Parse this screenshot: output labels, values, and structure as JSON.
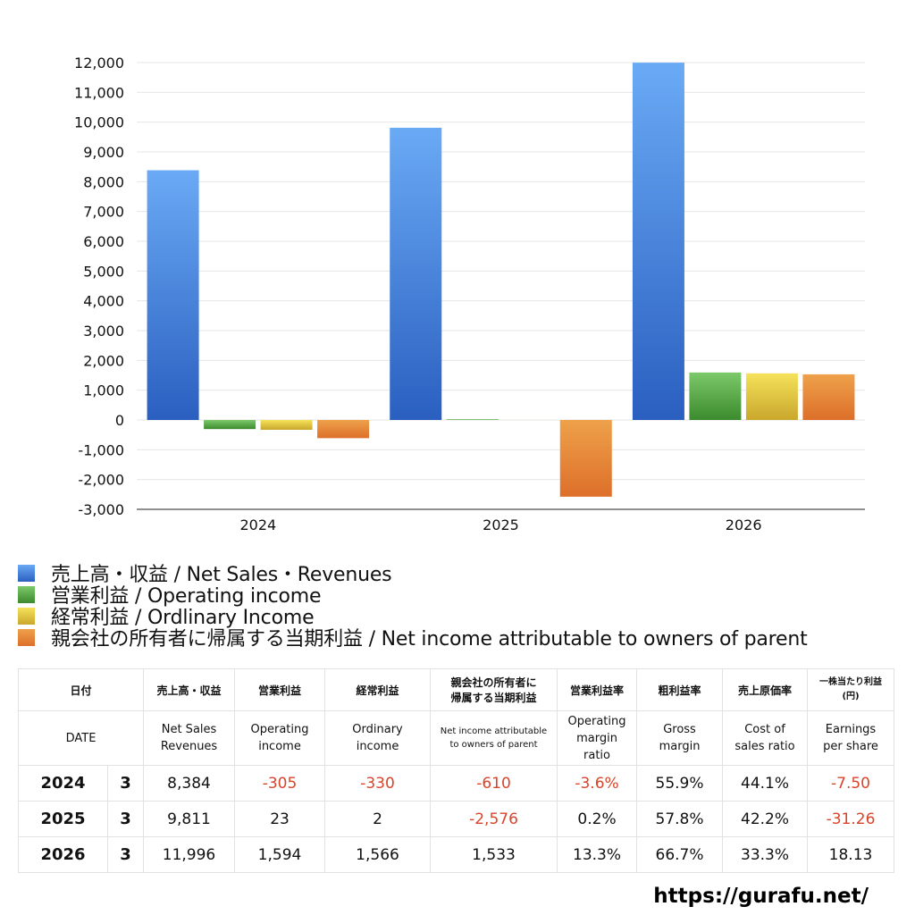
{
  "chart_data": {
    "type": "bar",
    "categories": [
      "2024",
      "2025",
      "2026"
    ],
    "ylim": [
      -3000,
      12000
    ],
    "yticks": [
      12000,
      11000,
      10000,
      9000,
      8000,
      7000,
      6000,
      5000,
      4000,
      3000,
      2000,
      1000,
      0,
      -1000,
      -2000,
      -3000
    ],
    "ytick_labels": [
      "12,000",
      "11,000",
      "10,000",
      "9,000",
      "8,000",
      "7,000",
      "6,000",
      "5,000",
      "4,000",
      "3,000",
      "2,000",
      "1,000",
      "0",
      "-1,000",
      "-2,000",
      "-3,000"
    ],
    "grid": true,
    "legend_position": "bottom-left",
    "series": [
      {
        "name": "売上高・収益 / Net Sales・Revenues",
        "color_top": "#6aaaf5",
        "color_bottom": "#2a5fc0",
        "values": [
          8384,
          9811,
          11996
        ]
      },
      {
        "name": "営業利益 / Operating income",
        "color_top": "#7cc96a",
        "color_bottom": "#3b8a2d",
        "values": [
          -305,
          23,
          1594
        ]
      },
      {
        "name": "経常利益 / Ordlinary Income",
        "color_top": "#f5e25a",
        "color_bottom": "#c9a72c",
        "values": [
          -330,
          2,
          1566
        ]
      },
      {
        "name": "親会社の所有者に帰属する当期利益 / Net income attributable to owners of parent",
        "color_top": "#eea14a",
        "color_bottom": "#dd6f2a",
        "values": [
          -610,
          -2576,
          1533
        ]
      }
    ]
  },
  "table": {
    "header_jp": {
      "date": "日付",
      "net_sales": "売上高・収益",
      "operating_income": "営業利益",
      "ordinary_income": "経常利益",
      "net_income_l1": "親会社の所有者に",
      "net_income_l2": "帰属する当期利益",
      "operating_margin": "営業利益率",
      "gross_margin": "粗利益率",
      "cost_ratio": "売上原価率",
      "eps_l1": "一株当たり利益",
      "eps_l2": "(円)"
    },
    "header_en": {
      "date": "DATE",
      "net_sales_l1": "Net Sales",
      "net_sales_l2": "Revenues",
      "operating_income_l1": "Operating",
      "operating_income_l2": "income",
      "ordinary_income_l1": "Ordinary",
      "ordinary_income_l2": "income",
      "net_income_l1": "Net income attributable",
      "net_income_l2": "to owners of parent",
      "operating_margin_l1": "Operating",
      "operating_margin_l2": "margin",
      "operating_margin_l3": "ratio",
      "gross_margin_l1": "Gross",
      "gross_margin_l2": "margin",
      "cost_ratio_l1": "Cost of",
      "cost_ratio_l2": "sales ratio",
      "eps_l1": "Earnings",
      "eps_l2": "per share"
    },
    "rows": [
      {
        "year": "2024",
        "month": "3",
        "net_sales": "8,384",
        "operating_income": "-305",
        "ordinary_income": "-330",
        "net_income": "-610",
        "operating_margin": "-3.6%",
        "gross_margin": "55.9%",
        "cost_ratio": "44.1%",
        "eps": "-7.50"
      },
      {
        "year": "2025",
        "month": "3",
        "net_sales": "9,811",
        "operating_income": "23",
        "ordinary_income": "2",
        "net_income": "-2,576",
        "operating_margin": "0.2%",
        "gross_margin": "57.8%",
        "cost_ratio": "42.2%",
        "eps": "-31.26"
      },
      {
        "year": "2026",
        "month": "3",
        "net_sales": "11,996",
        "operating_income": "1,594",
        "ordinary_income": "1,566",
        "net_income": "1,533",
        "operating_margin": "13.3%",
        "gross_margin": "66.7%",
        "cost_ratio": "33.3%",
        "eps": "18.13"
      }
    ]
  },
  "footer": {
    "url": "https://gurafu.net/"
  }
}
